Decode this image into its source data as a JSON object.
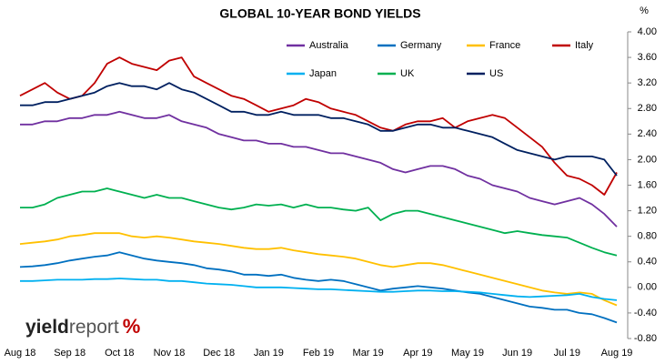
{
  "chart_data": {
    "type": "line",
    "title": "GLOBAL 10-YEAR BOND YIELDS",
    "y_unit": "%",
    "watermark": {
      "part1": "yield",
      "part2": "report",
      "symbol": "%"
    },
    "categories": [
      "Aug 18",
      null,
      null,
      null,
      "Sep 18",
      null,
      null,
      null,
      "Oct 18",
      null,
      null,
      null,
      "Nov 18",
      null,
      null,
      null,
      "Dec 18",
      null,
      null,
      null,
      "Jan 19",
      null,
      null,
      null,
      "Feb 19",
      null,
      null,
      null,
      "Mar 19",
      null,
      null,
      null,
      "Apr 19",
      null,
      null,
      null,
      "May 19",
      null,
      null,
      null,
      "Jun 19",
      null,
      null,
      null,
      "Jul 19",
      null,
      null,
      null,
      "Aug 19"
    ],
    "ylim": [
      -0.8,
      4.0
    ],
    "yticks": [
      {
        "value": -0.8,
        "label": "-0.80"
      },
      {
        "value": -0.4,
        "label": "-0.40"
      },
      {
        "value": 0,
        "label": "0.00"
      },
      {
        "value": 0.4,
        "label": "0.40"
      },
      {
        "value": 0.8,
        "label": "0.80"
      },
      {
        "value": 1.2,
        "label": "1.20"
      },
      {
        "value": 1.6,
        "label": "1.60"
      },
      {
        "value": 2.0,
        "label": "2.00"
      },
      {
        "value": 2.4,
        "label": "2.40"
      },
      {
        "value": 2.8,
        "label": "2.80"
      },
      {
        "value": 3.2,
        "label": "3.20"
      },
      {
        "value": 3.6,
        "label": "3.60"
      },
      {
        "value": 4.0,
        "label": "4.00"
      }
    ],
    "grid": false,
    "series": [
      {
        "name": "Australia",
        "color": "#7030a0",
        "values": [
          2.55,
          2.55,
          2.6,
          2.6,
          2.65,
          2.65,
          2.7,
          2.7,
          2.75,
          2.7,
          2.65,
          2.65,
          2.7,
          2.6,
          2.55,
          2.5,
          2.4,
          2.35,
          2.3,
          2.3,
          2.25,
          2.25,
          2.2,
          2.2,
          2.15,
          2.1,
          2.1,
          2.05,
          2.0,
          1.95,
          1.85,
          1.8,
          1.85,
          1.9,
          1.9,
          1.85,
          1.75,
          1.7,
          1.6,
          1.55,
          1.5,
          1.4,
          1.35,
          1.3,
          1.35,
          1.4,
          1.3,
          1.15,
          0.95
        ]
      },
      {
        "name": "Germany",
        "color": "#0070c0",
        "values": [
          0.32,
          0.33,
          0.35,
          0.38,
          0.42,
          0.45,
          0.48,
          0.5,
          0.55,
          0.5,
          0.45,
          0.42,
          0.4,
          0.38,
          0.35,
          0.3,
          0.28,
          0.25,
          0.2,
          0.2,
          0.18,
          0.2,
          0.15,
          0.12,
          0.1,
          0.12,
          0.1,
          0.05,
          0.0,
          -0.05,
          -0.02,
          0.0,
          0.02,
          0.0,
          -0.02,
          -0.05,
          -0.08,
          -0.1,
          -0.15,
          -0.2,
          -0.25,
          -0.3,
          -0.32,
          -0.35,
          -0.35,
          -0.4,
          -0.42,
          -0.48,
          -0.55
        ]
      },
      {
        "name": "France",
        "color": "#ffc000",
        "values": [
          0.68,
          0.7,
          0.72,
          0.75,
          0.8,
          0.82,
          0.85,
          0.85,
          0.85,
          0.8,
          0.78,
          0.8,
          0.78,
          0.75,
          0.72,
          0.7,
          0.68,
          0.65,
          0.62,
          0.6,
          0.6,
          0.62,
          0.58,
          0.55,
          0.52,
          0.5,
          0.48,
          0.45,
          0.4,
          0.35,
          0.32,
          0.35,
          0.38,
          0.38,
          0.35,
          0.3,
          0.25,
          0.2,
          0.15,
          0.1,
          0.05,
          0.0,
          -0.05,
          -0.08,
          -0.1,
          -0.08,
          -0.1,
          -0.2,
          -0.28
        ]
      },
      {
        "name": "Italy",
        "color": "#c00000",
        "values": [
          3.0,
          3.1,
          3.2,
          3.05,
          2.95,
          3.0,
          3.2,
          3.5,
          3.6,
          3.5,
          3.45,
          3.4,
          3.55,
          3.6,
          3.3,
          3.2,
          3.1,
          3.0,
          2.95,
          2.85,
          2.75,
          2.8,
          2.85,
          2.95,
          2.9,
          2.8,
          2.75,
          2.7,
          2.6,
          2.5,
          2.45,
          2.55,
          2.6,
          2.6,
          2.65,
          2.5,
          2.6,
          2.65,
          2.7,
          2.65,
          2.5,
          2.35,
          2.2,
          1.95,
          1.75,
          1.7,
          1.6,
          1.45,
          1.8
        ]
      },
      {
        "name": "Japan",
        "color": "#00b0f0",
        "values": [
          0.1,
          0.1,
          0.11,
          0.12,
          0.12,
          0.12,
          0.13,
          0.13,
          0.14,
          0.13,
          0.12,
          0.12,
          0.1,
          0.1,
          0.08,
          0.06,
          0.05,
          0.04,
          0.02,
          0.0,
          0.0,
          0.0,
          -0.01,
          -0.02,
          -0.03,
          -0.03,
          -0.04,
          -0.05,
          -0.06,
          -0.07,
          -0.07,
          -0.06,
          -0.05,
          -0.05,
          -0.06,
          -0.06,
          -0.07,
          -0.08,
          -0.1,
          -0.12,
          -0.14,
          -0.15,
          -0.14,
          -0.13,
          -0.12,
          -0.1,
          -0.15,
          -0.18,
          -0.2
        ]
      },
      {
        "name": "UK",
        "color": "#00b050",
        "values": [
          1.25,
          1.25,
          1.3,
          1.4,
          1.45,
          1.5,
          1.5,
          1.55,
          1.5,
          1.45,
          1.4,
          1.45,
          1.4,
          1.4,
          1.35,
          1.3,
          1.25,
          1.22,
          1.25,
          1.3,
          1.28,
          1.3,
          1.25,
          1.3,
          1.25,
          1.25,
          1.22,
          1.2,
          1.25,
          1.05,
          1.15,
          1.2,
          1.2,
          1.15,
          1.1,
          1.05,
          1.0,
          0.95,
          0.9,
          0.85,
          0.88,
          0.85,
          0.82,
          0.8,
          0.78,
          0.7,
          0.62,
          0.55,
          0.5
        ]
      },
      {
        "name": "US",
        "color": "#002060",
        "values": [
          2.85,
          2.85,
          2.9,
          2.9,
          2.95,
          3.0,
          3.05,
          3.15,
          3.2,
          3.15,
          3.15,
          3.1,
          3.2,
          3.1,
          3.05,
          2.95,
          2.85,
          2.75,
          2.75,
          2.7,
          2.7,
          2.75,
          2.7,
          2.7,
          2.7,
          2.65,
          2.65,
          2.6,
          2.55,
          2.45,
          2.45,
          2.5,
          2.55,
          2.55,
          2.5,
          2.5,
          2.45,
          2.4,
          2.35,
          2.25,
          2.15,
          2.1,
          2.05,
          2.0,
          2.05,
          2.05,
          2.05,
          2.0,
          1.75
        ]
      }
    ]
  }
}
